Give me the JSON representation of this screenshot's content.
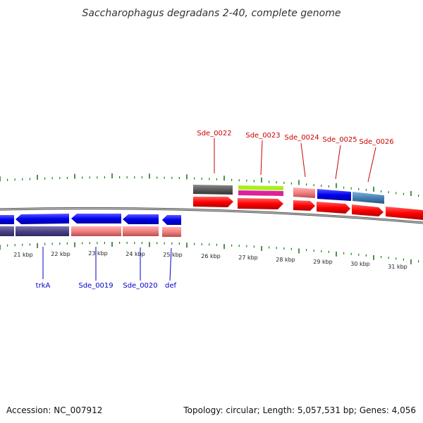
{
  "title": "Saccharophagus degradans 2-40, complete genome",
  "footer": {
    "accession": "Accession: NC_007912",
    "summary": "Topology: circular; Length: 5,057,531 bp; Genes: 4,056"
  },
  "colors": {
    "forward_label": "#cc0000",
    "reverse_label": "#0000cc",
    "tick": "#1a7a1a",
    "backbone": "#777777"
  },
  "axis": {
    "labels": [
      "21 kbp",
      "22 kbp",
      "23 kbp",
      "24 kbp",
      "25 kbp",
      "26 kbp",
      "27 kbp",
      "28 kbp",
      "29 kbp",
      "30 kbp",
      "31 kbp"
    ]
  },
  "labels": {
    "forward": [
      "Sde_0022",
      "Sde_0023",
      "Sde_0024",
      "Sde_0025",
      "Sde_0026"
    ],
    "reverse": [
      "trkA",
      "Sde_0019",
      "Sde_0020",
      "def"
    ]
  },
  "legend_colors": {
    "cds_red": "#ff0000",
    "cds_blue": "#0000ee",
    "cog_purple": "#4b4385",
    "cog_pink": "#f08080",
    "cog_gray": "#5a5a5a",
    "cog_lime": "#aaee22",
    "cog_magenta": "#dd2299",
    "cog_steel": "#4682b4"
  }
}
